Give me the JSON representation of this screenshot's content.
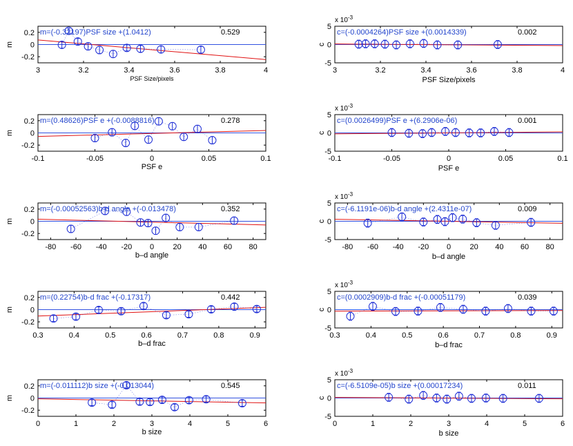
{
  "colors": {
    "axis": "#000000",
    "data": "#1f2fd6",
    "fit_red": "#e01010",
    "zero_blue": "#3050e0",
    "annotation": "#2244cc"
  },
  "chart_data": [
    {
      "type": "scatter",
      "panel": "m-vs-psf-size",
      "xlabel": "PSF Size/pixels",
      "ylabel": "m",
      "exp_label": "",
      "xlim": [
        3,
        4
      ],
      "ylim": [
        -0.3,
        0.3
      ],
      "xticks": [
        "3",
        "3.2",
        "3.4",
        "3.6",
        "3.8",
        "4"
      ],
      "xtick_values": [
        3,
        3.2,
        3.4,
        3.6,
        3.8,
        4
      ],
      "yticks": [
        "-0.2",
        "0",
        "0.2"
      ],
      "ytick_values": [
        -0.2,
        0,
        0.2
      ],
      "annotation": "m=(-0.32197)PSF size +(1.0412)",
      "corr": "0.529",
      "fit": {
        "slope": -0.32197,
        "intercept": 1.0412
      },
      "x": [
        3.105,
        3.135,
        3.175,
        3.22,
        3.27,
        3.33,
        3.39,
        3.45,
        3.54,
        3.715
      ],
      "y": [
        -0.005,
        0.225,
        0.05,
        -0.03,
        -0.09,
        -0.155,
        -0.055,
        -0.07,
        -0.08,
        -0.085
      ],
      "err": [
        0.055,
        0.04,
        0.05,
        0.06,
        0.06,
        0.06,
        0.05,
        0.055,
        0.055,
        0.055
      ]
    },
    {
      "type": "scatter",
      "panel": "c-vs-psf-size",
      "xlabel": "PSF Size/pixels",
      "ylabel": "c",
      "exp_label": "x 10",
      "xlim": [
        3,
        4
      ],
      "ylim": [
        -0.005,
        0.005
      ],
      "xticks": [
        "3",
        "3.2",
        "3.4",
        "3.6",
        "3.8",
        "4"
      ],
      "xtick_values": [
        3,
        3.2,
        3.4,
        3.6,
        3.8,
        4
      ],
      "yticks": [
        "-5",
        "0",
        "5"
      ],
      "ytick_values": [
        -0.005,
        0,
        0.005
      ],
      "annotation": "c=(-0.0004264)PSF size +(0.0014339)",
      "corr": "0.002",
      "fit": {
        "slope": -0.0004264,
        "intercept": 0.0014339
      },
      "x": [
        3.105,
        3.135,
        3.175,
        3.22,
        3.27,
        3.33,
        3.39,
        3.45,
        3.54,
        3.715
      ],
      "y": [
        0.0001,
        0.0002,
        0.0002,
        0.0001,
        -0.0001,
        0.0002,
        0.0003,
        -0.0001,
        -0.0001,
        0
      ],
      "err": [
        0.0011,
        0.0011,
        0.0011,
        0.0011,
        0.0011,
        0.0011,
        0.0011,
        0.0011,
        0.0011,
        0.0011
      ]
    },
    {
      "type": "scatter",
      "panel": "m-vs-psf-e",
      "xlabel": "PSF e",
      "ylabel": "m",
      "exp_label": "",
      "xlim": [
        -0.1,
        0.1
      ],
      "ylim": [
        -0.3,
        0.3
      ],
      "xticks": [
        "-0.1",
        "-0.05",
        "0",
        "0.05",
        "0.1"
      ],
      "xtick_values": [
        -0.1,
        -0.05,
        0,
        0.05,
        0.1
      ],
      "yticks": [
        "-0.2",
        "0",
        "0.2"
      ],
      "ytick_values": [
        -0.2,
        0,
        0.2
      ],
      "annotation": "m=(0.48626)PSF e +(-0.0088816)",
      "corr": "0.278",
      "fit": {
        "slope": 0.48626,
        "intercept": -0.0088816
      },
      "x": [
        -0.05,
        -0.035,
        -0.023,
        -0.015,
        -0.003,
        0.006,
        0.018,
        0.028,
        0.04,
        0.053
      ],
      "y": [
        -0.085,
        0.01,
        -0.165,
        0.115,
        -0.11,
        0.19,
        0.11,
        -0.065,
        0.065,
        -0.12
      ],
      "err": [
        0.06,
        0.06,
        0.06,
        0.06,
        0.06,
        0.06,
        0.06,
        0.06,
        0.06,
        0.06
      ]
    },
    {
      "type": "scatter",
      "panel": "c-vs-psf-e",
      "xlabel": "PSF e",
      "ylabel": "c",
      "exp_label": "x 10",
      "xlim": [
        -0.1,
        0.1
      ],
      "ylim": [
        -0.005,
        0.005
      ],
      "xticks": [
        "-0.1",
        "-0.05",
        "0",
        "0.05",
        "0.1"
      ],
      "xtick_values": [
        -0.1,
        -0.05,
        0,
        0.05,
        0.1
      ],
      "yticks": [
        "-5",
        "0",
        "5"
      ],
      "ytick_values": [
        -0.005,
        0,
        0.005
      ],
      "annotation": "c=(0.0026499)PSF e +(6.2906e-06)",
      "corr": "0.001",
      "fit": {
        "slope": 0.0026499,
        "intercept": 6.2906e-06
      },
      "x": [
        -0.05,
        -0.035,
        -0.023,
        -0.015,
        -0.003,
        0.006,
        0.018,
        0.028,
        0.04,
        0.053
      ],
      "y": [
        0.0001,
        -0.0001,
        -0.0002,
        0.0001,
        0.0004,
        0.0001,
        0,
        0,
        0.0004,
        0.0001
      ],
      "err": [
        0.0011,
        0.0011,
        0.0011,
        0.0011,
        0.0011,
        0.0011,
        0.0011,
        0.0011,
        0.0011,
        0.0011
      ]
    },
    {
      "type": "scatter",
      "panel": "m-vs-bd-angle",
      "xlabel": "b–d angle",
      "ylabel": "m",
      "exp_label": "",
      "xlim": [
        -90,
        90
      ],
      "ylim": [
        -0.3,
        0.3
      ],
      "xticks": [
        "-80",
        "-60",
        "-40",
        "-20",
        "0",
        "20",
        "40",
        "60",
        "80"
      ],
      "xtick_values": [
        -80,
        -60,
        -40,
        -20,
        0,
        20,
        40,
        60,
        80
      ],
      "yticks": [
        "-0.2",
        "0",
        "0.2"
      ],
      "ytick_values": [
        -0.2,
        0,
        0.2
      ],
      "annotation": "m=(-0.00052563)b-d angle +(-0.013478)",
      "corr": "0.352",
      "fit": {
        "slope": -0.00052563,
        "intercept": -0.013478
      },
      "x": [
        -64,
        -37,
        -20,
        -9,
        -3,
        3,
        11,
        22,
        37,
        65
      ],
      "y": [
        -0.125,
        0.17,
        0.155,
        -0.02,
        -0.03,
        -0.155,
        0.055,
        -0.095,
        -0.095,
        0.01
      ],
      "err": [
        0.06,
        0.06,
        0.06,
        0.06,
        0.06,
        0.06,
        0.06,
        0.06,
        0.06,
        0.06
      ]
    },
    {
      "type": "scatter",
      "panel": "c-vs-bd-angle",
      "xlabel": "b–d angle",
      "ylabel": "c",
      "exp_label": "x 10",
      "xlim": [
        -90,
        90
      ],
      "ylim": [
        -0.005,
        0.005
      ],
      "xticks": [
        "-80",
        "-60",
        "-40",
        "-20",
        "0",
        "20",
        "40",
        "60",
        "80"
      ],
      "xtick_values": [
        -80,
        -60,
        -40,
        -20,
        0,
        20,
        40,
        60,
        80
      ],
      "yticks": [
        "-5",
        "0",
        "5"
      ],
      "ytick_values": [
        -0.005,
        0,
        0.005
      ],
      "annotation": "c=(-6.1191e-06)b-d angle +(2.4311e-07)",
      "corr": "0.009",
      "fit": {
        "slope": -6.1191e-06,
        "intercept": 2.4311e-07
      },
      "x": [
        -64,
        -37,
        -20,
        -9,
        -3,
        3,
        11,
        22,
        37,
        65
      ],
      "y": [
        -0.0005,
        0.0012,
        -0.0002,
        0.0005,
        -0.0001,
        0.001,
        0.0006,
        -0.0004,
        -0.0011,
        -0.0003
      ],
      "err": [
        0.0011,
        0.0011,
        0.0011,
        0.0011,
        0.0011,
        0.0011,
        0.0011,
        0.0011,
        0.0011,
        0.0011
      ]
    },
    {
      "type": "scatter",
      "panel": "m-vs-bd-frac",
      "xlabel": "b–d frac",
      "ylabel": "m",
      "exp_label": "",
      "xlim": [
        0.3,
        0.93
      ],
      "ylim": [
        -0.3,
        0.3
      ],
      "xticks": [
        "0.3",
        "0.4",
        "0.5",
        "0.6",
        "0.7",
        "0.8",
        "0.9"
      ],
      "xtick_values": [
        0.3,
        0.4,
        0.5,
        0.6,
        0.7,
        0.8,
        0.9
      ],
      "yticks": [
        "-0.2",
        "0",
        "0.2"
      ],
      "ytick_values": [
        -0.2,
        0,
        0.2
      ],
      "annotation": "m=(0.22754)b-d frac +(-0.17317)",
      "corr": "0.442",
      "fit": {
        "slope": 0.22754,
        "intercept": -0.17317
      },
      "x": [
        0.343,
        0.405,
        0.468,
        0.53,
        0.592,
        0.655,
        0.717,
        0.779,
        0.843,
        0.905
      ],
      "y": [
        -0.145,
        -0.115,
        -0.005,
        -0.025,
        0.06,
        -0.09,
        -0.075,
        0.005,
        0.05,
        0.01
      ],
      "err": [
        0.05,
        0.05,
        0.05,
        0.05,
        0.05,
        0.05,
        0.05,
        0.05,
        0.05,
        0.05
      ]
    },
    {
      "type": "scatter",
      "panel": "c-vs-bd-frac",
      "xlabel": "b–d frac",
      "ylabel": "c",
      "exp_label": "x 10",
      "xlim": [
        0.3,
        0.93
      ],
      "ylim": [
        -0.005,
        0.005
      ],
      "xticks": [
        "0.3",
        "0.4",
        "0.5",
        "0.6",
        "0.7",
        "0.8",
        "0.9"
      ],
      "xtick_values": [
        0.3,
        0.4,
        0.5,
        0.6,
        0.7,
        0.8,
        0.9
      ],
      "yticks": [
        "-5",
        "0",
        "5"
      ],
      "ytick_values": [
        -0.005,
        0,
        0.005
      ],
      "annotation": "c=(0.0002909)b-d frac +(-0.00051179)",
      "corr": "0.039",
      "fit": {
        "slope": 0.0002909,
        "intercept": -0.00051179
      },
      "x": [
        0.343,
        0.405,
        0.468,
        0.53,
        0.592,
        0.655,
        0.717,
        0.779,
        0.843,
        0.905
      ],
      "y": [
        -0.0018,
        0.0009,
        -0.0005,
        -0.0004,
        0.0006,
        0.0001,
        -0.0004,
        0.0003,
        -0.0004,
        -0.0004
      ],
      "err": [
        0.0011,
        0.0011,
        0.0011,
        0.0011,
        0.0011,
        0.0011,
        0.0011,
        0.0011,
        0.0011,
        0.0011
      ]
    },
    {
      "type": "scatter",
      "panel": "m-vs-b-size",
      "xlabel": "b size",
      "ylabel": "m",
      "exp_label": "",
      "xlim": [
        0,
        6
      ],
      "ylim": [
        -0.3,
        0.3
      ],
      "xticks": [
        "0",
        "1",
        "2",
        "3",
        "4",
        "5",
        "6"
      ],
      "xtick_values": [
        0,
        1,
        2,
        3,
        4,
        5,
        6
      ],
      "yticks": [
        "-0.2",
        "0",
        "0.2"
      ],
      "ytick_values": [
        -0.2,
        0,
        0.2
      ],
      "annotation": "m=(-0.011112)b size +(-0.013044)",
      "corr": "0.545",
      "fit": {
        "slope": -0.011112,
        "intercept": -0.013044
      },
      "x": [
        1.42,
        1.95,
        2.33,
        2.68,
        2.95,
        3.27,
        3.6,
        3.98,
        4.43,
        5.38
      ],
      "y": [
        -0.075,
        -0.11,
        0.21,
        -0.06,
        -0.065,
        -0.03,
        -0.15,
        -0.035,
        -0.02,
        -0.085
      ],
      "err": [
        0.05,
        0.05,
        0.05,
        0.05,
        0.05,
        0.05,
        0.05,
        0.05,
        0.05,
        0.05
      ]
    },
    {
      "type": "scatter",
      "panel": "c-vs-b-size",
      "xlabel": "b size",
      "ylabel": "c",
      "exp_label": "x 10",
      "xlim": [
        0,
        6
      ],
      "ylim": [
        -0.005,
        0.005
      ],
      "xticks": [
        "0",
        "1",
        "2",
        "3",
        "4",
        "5",
        "6"
      ],
      "xtick_values": [
        0,
        1,
        2,
        3,
        4,
        5,
        6
      ],
      "yticks": [
        "-5",
        "0",
        "5"
      ],
      "ytick_values": [
        -0.005,
        0,
        0.005
      ],
      "annotation": "c=(-6.5109e-05)b size +(0.00017234)",
      "corr": "0.011",
      "fit": {
        "slope": -6.5109e-05,
        "intercept": 0.00017234
      },
      "x": [
        1.42,
        1.95,
        2.33,
        2.68,
        2.95,
        3.27,
        3.6,
        3.98,
        4.43,
        5.38
      ],
      "y": [
        0.0002,
        -0.0003,
        0.0007,
        0,
        -0.0003,
        0.0005,
        -0.0001,
        0,
        -0.0001,
        -0.0001
      ],
      "err": [
        0.0011,
        0.0011,
        0.0011,
        0.0011,
        0.0011,
        0.0011,
        0.0011,
        0.0011,
        0.0011,
        0.0011
      ]
    }
  ],
  "exponent": "-3"
}
